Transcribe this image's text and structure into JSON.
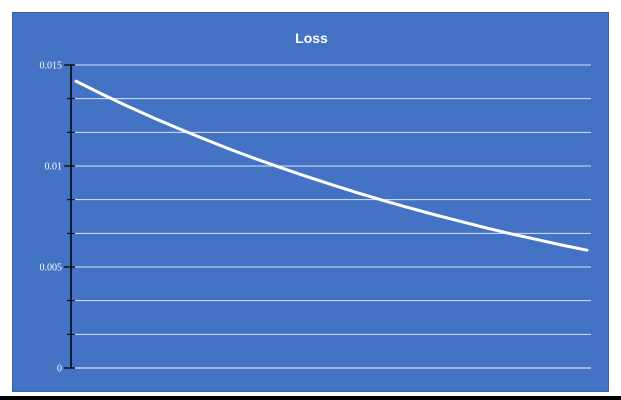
{
  "chart_data": {
    "type": "line",
    "title": "Loss",
    "xlabel": "",
    "ylabel": "",
    "ylim": [
      0,
      0.015
    ],
    "yticks": [
      {
        "value": 0,
        "label": "0"
      },
      {
        "value": 0.005,
        "label": "0.005"
      },
      {
        "value": 0.01,
        "label": "0.01"
      },
      {
        "value": 0.015,
        "label": "0.015"
      }
    ],
    "minor_ytick_step": 0.0016667,
    "grid": true,
    "legend": "none",
    "series": [
      {
        "x": [
          0,
          1,
          2,
          3,
          4,
          5,
          6,
          7,
          8,
          9,
          10,
          11,
          12,
          13,
          14,
          15,
          16,
          17,
          18,
          19,
          20
        ],
        "values": [
          0.0142,
          0.01357,
          0.01297,
          0.0124,
          0.01186,
          0.01134,
          0.01084,
          0.01037,
          0.00992,
          0.00949,
          0.00908,
          0.00868,
          0.0083,
          0.00794,
          0.0076,
          0.00727,
          0.00695,
          0.00665,
          0.00637,
          0.00609,
          0.00583
        ],
        "color": "#ffffff"
      }
    ],
    "background_color": "#4472c4",
    "axis_color": "#000000",
    "grid_color": "#d9e2f3"
  }
}
